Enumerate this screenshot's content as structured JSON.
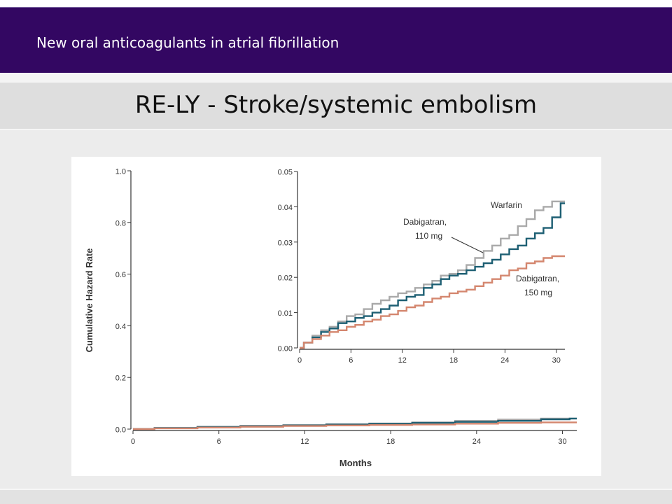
{
  "header": {
    "subtitle": "New oral anticoagulants in atrial fibrillation"
  },
  "slide": {
    "title": "RE-LY - Stroke/systemic embolism"
  },
  "colors": {
    "header_bg": "#330762",
    "warfarin": "#a9a9a9",
    "dabigatran_110": "#1d5f73",
    "dabigatran_150": "#d4866e"
  },
  "chart_data": [
    {
      "type": "line",
      "name": "main",
      "xlabel": "Months",
      "ylabel": "Cumulative Hazard Rate",
      "xlim": [
        0,
        31
      ],
      "ylim": [
        0,
        1.0
      ],
      "xticks": [
        "0",
        "6",
        "12",
        "18",
        "24",
        "30"
      ],
      "yticks": [
        "0.0",
        "0.2",
        "0.4",
        "0.6",
        "0.8",
        "1.0"
      ],
      "series": [
        {
          "key": "warfarin",
          "x": [
            0,
            3,
            6,
            9,
            12,
            15,
            18,
            21,
            24,
            27,
            30,
            31
          ],
          "y": [
            0,
            0.004,
            0.009,
            0.013,
            0.016,
            0.019,
            0.022,
            0.026,
            0.032,
            0.037,
            0.041,
            0.041
          ]
        },
        {
          "key": "dab110",
          "x": [
            0,
            3,
            6,
            9,
            12,
            15,
            18,
            21,
            24,
            27,
            30,
            31
          ],
          "y": [
            0,
            0.004,
            0.008,
            0.011,
            0.014,
            0.018,
            0.021,
            0.024,
            0.028,
            0.032,
            0.038,
            0.041
          ]
        },
        {
          "key": "dab150",
          "x": [
            0,
            3,
            6,
            9,
            12,
            15,
            18,
            21,
            24,
            27,
            30,
            31
          ],
          "y": [
            0,
            0.003,
            0.006,
            0.009,
            0.012,
            0.014,
            0.016,
            0.018,
            0.021,
            0.024,
            0.026,
            0.026
          ]
        }
      ]
    },
    {
      "type": "line",
      "name": "inset",
      "xlim": [
        0,
        31
      ],
      "ylim": [
        0,
        0.05
      ],
      "xticks": [
        "0",
        "6",
        "12",
        "18",
        "24",
        "30"
      ],
      "yticks": [
        "0.00",
        "0.01",
        "0.02",
        "0.03",
        "0.04",
        "0.05"
      ],
      "series": [
        {
          "key": "warfarin",
          "name": "Warfarin",
          "x": [
            0,
            1,
            2,
            3,
            4,
            5,
            6,
            7,
            8,
            9,
            10,
            11,
            12,
            13,
            14,
            15,
            16,
            17,
            18,
            19,
            20,
            21,
            22,
            23,
            24,
            25,
            26,
            27,
            28,
            29,
            30,
            31
          ],
          "y": [
            0,
            0.0015,
            0.0035,
            0.005,
            0.006,
            0.0075,
            0.009,
            0.0095,
            0.011,
            0.0125,
            0.0135,
            0.0145,
            0.0155,
            0.016,
            0.017,
            0.018,
            0.019,
            0.0205,
            0.021,
            0.022,
            0.0235,
            0.0255,
            0.0275,
            0.029,
            0.031,
            0.032,
            0.0345,
            0.0365,
            0.039,
            0.04,
            0.0415,
            0.0415
          ]
        },
        {
          "key": "dab110",
          "name": "Dabigatran, 110 mg",
          "x": [
            0,
            1,
            2,
            3,
            4,
            5,
            6,
            7,
            8,
            9,
            10,
            11,
            12,
            13,
            14,
            15,
            16,
            17,
            18,
            19,
            20,
            21,
            22,
            23,
            24,
            25,
            26,
            27,
            28,
            29,
            30,
            31
          ],
          "y": [
            0,
            0.0015,
            0.003,
            0.0045,
            0.0055,
            0.007,
            0.0075,
            0.0085,
            0.009,
            0.01,
            0.011,
            0.012,
            0.0135,
            0.0145,
            0.015,
            0.017,
            0.018,
            0.0195,
            0.0205,
            0.021,
            0.022,
            0.023,
            0.024,
            0.025,
            0.0265,
            0.028,
            0.029,
            0.031,
            0.0325,
            0.034,
            0.037,
            0.041
          ]
        },
        {
          "key": "dab150",
          "name": "Dabigatran, 150 mg",
          "x": [
            0,
            1,
            2,
            3,
            4,
            5,
            6,
            7,
            8,
            9,
            10,
            11,
            12,
            13,
            14,
            15,
            16,
            17,
            18,
            19,
            20,
            21,
            22,
            23,
            24,
            25,
            26,
            27,
            28,
            29,
            30,
            31
          ],
          "y": [
            0,
            0.0015,
            0.0025,
            0.0035,
            0.0045,
            0.005,
            0.006,
            0.0065,
            0.0075,
            0.008,
            0.009,
            0.0095,
            0.0105,
            0.0115,
            0.012,
            0.013,
            0.014,
            0.0145,
            0.0155,
            0.016,
            0.0165,
            0.0175,
            0.0185,
            0.0195,
            0.0205,
            0.022,
            0.0225,
            0.024,
            0.0245,
            0.0255,
            0.026,
            0.026
          ]
        }
      ],
      "annotations": [
        {
          "text": "Warfarin",
          "series": "warfarin"
        },
        {
          "text": "Dabigatran,",
          "line2": "110 mg",
          "series": "dab110"
        },
        {
          "text": "Dabigatran,",
          "line2": "150 mg",
          "series": "dab150"
        }
      ]
    }
  ]
}
